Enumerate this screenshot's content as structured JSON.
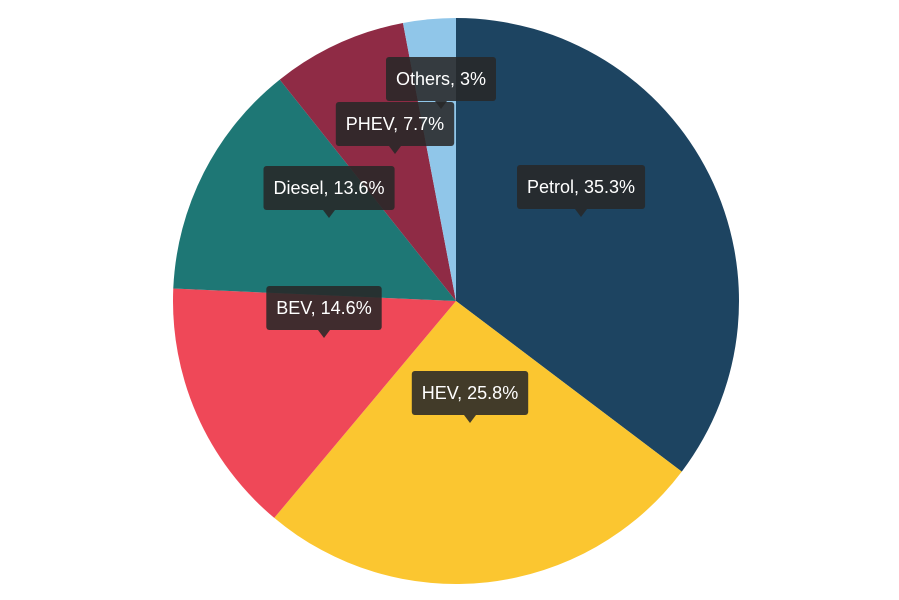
{
  "chart_data": {
    "type": "pie",
    "title": "",
    "start_angle_deg": 0,
    "direction": "clockwise",
    "slices": [
      {
        "name": "Petrol",
        "value": 35.3,
        "label": "Petrol, 35.3%",
        "color": "#1d4461"
      },
      {
        "name": "HEV",
        "value": 25.8,
        "label": "HEV, 25.8%",
        "color": "#fbc630"
      },
      {
        "name": "BEV",
        "value": 14.6,
        "label": "BEV, 14.6%",
        "color": "#ef4858"
      },
      {
        "name": "Diesel",
        "value": 13.6,
        "label": "Diesel, 13.6%",
        "color": "#1e7775"
      },
      {
        "name": "PHEV",
        "value": 7.7,
        "label": "PHEV, 7.7%",
        "color": "#8f2b45"
      },
      {
        "name": "Others",
        "value": 3,
        "label": "Others, 3%",
        "color": "#90c6e9"
      }
    ]
  }
}
